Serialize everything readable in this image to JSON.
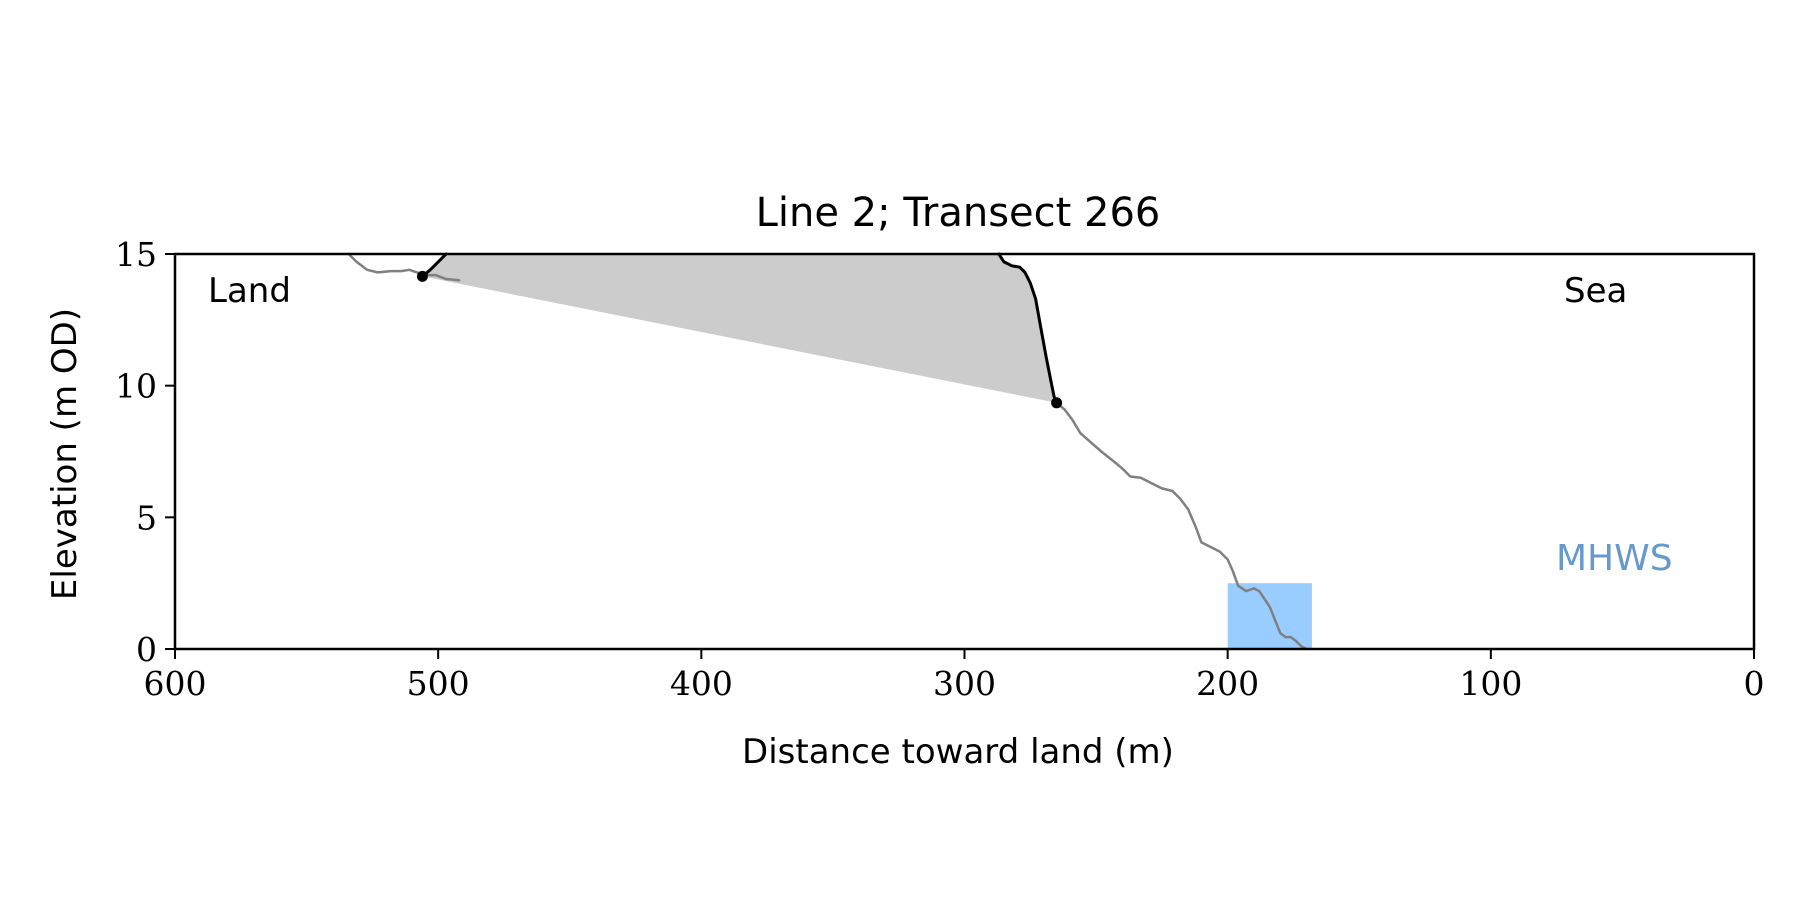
{
  "chart_data": {
    "type": "line",
    "title": "Line 2; Transect 266",
    "xlabel": "Distance toward land (m)",
    "ylabel": "Elevation (m OD)",
    "xlim": [
      600,
      0
    ],
    "ylim": [
      0,
      15
    ],
    "x_ticks": [
      600,
      500,
      400,
      300,
      200,
      100,
      0
    ],
    "y_ticks": [
      0,
      5,
      10,
      15
    ],
    "grid": false,
    "annotations": {
      "land_label": "Land",
      "sea_label": "Sea",
      "mhws_label": "MHWS"
    },
    "mhws_level": 2.5,
    "mhws_x_range": [
      200,
      168
    ],
    "colors": {
      "profile": "#808080",
      "cliff": "#000000",
      "fill": "#cccccc",
      "mhws": "#99ccff",
      "mhws_text": "#6699cc"
    },
    "series": [
      {
        "role": "ground profile",
        "points": [
          [
            534,
            15.0
          ],
          [
            531,
            14.7
          ],
          [
            527,
            14.4
          ],
          [
            523,
            14.3
          ],
          [
            518,
            14.35
          ],
          [
            514,
            14.35
          ],
          [
            511,
            14.4
          ],
          [
            508,
            14.3
          ],
          [
            505,
            14.2
          ],
          [
            501,
            14.2
          ],
          [
            497,
            14.05
          ],
          [
            492,
            14.0
          ]
        ]
      },
      {
        "role": "ground profile",
        "points": [
          [
            265,
            9.35
          ],
          [
            262,
            9.1
          ],
          [
            259,
            8.7
          ],
          [
            256,
            8.2
          ],
          [
            252,
            7.85
          ],
          [
            248,
            7.5
          ],
          [
            243,
            7.1
          ],
          [
            240,
            6.85
          ],
          [
            237,
            6.55
          ],
          [
            233,
            6.5
          ],
          [
            229,
            6.3
          ],
          [
            225,
            6.1
          ],
          [
            221,
            6.0
          ],
          [
            218,
            5.7
          ],
          [
            215,
            5.3
          ],
          [
            212,
            4.6
          ],
          [
            210,
            4.05
          ],
          [
            207,
            3.9
          ],
          [
            203,
            3.7
          ],
          [
            200,
            3.4
          ],
          [
            198,
            2.95
          ],
          [
            196,
            2.4
          ],
          [
            193,
            2.2
          ],
          [
            190,
            2.3
          ],
          [
            188,
            2.2
          ],
          [
            186,
            1.9
          ],
          [
            184,
            1.6
          ],
          [
            182,
            1.1
          ],
          [
            180,
            0.6
          ],
          [
            178,
            0.45
          ],
          [
            176,
            0.45
          ],
          [
            174,
            0.3
          ],
          [
            172,
            0.1
          ],
          [
            170,
            0.0
          ]
        ]
      },
      {
        "role": "cliff top section",
        "points": [
          [
            506,
            14.15
          ],
          [
            503,
            14.4
          ],
          [
            499,
            14.8
          ],
          [
            497,
            15.0
          ]
        ]
      },
      {
        "role": "cliff face section",
        "points": [
          [
            287,
            15.0
          ],
          [
            285,
            14.7
          ],
          [
            282,
            14.55
          ],
          [
            279,
            14.5
          ],
          [
            277,
            14.3
          ],
          [
            275,
            13.9
          ],
          [
            273,
            13.3
          ],
          [
            271,
            12.2
          ],
          [
            269,
            11.1
          ],
          [
            267,
            10.1
          ],
          [
            266,
            9.6
          ],
          [
            265,
            9.35
          ]
        ]
      }
    ],
    "markers": [
      [
        506,
        14.15
      ],
      [
        265,
        9.35
      ]
    ],
    "filled_region": [
      [
        506,
        14.15
      ],
      [
        497,
        15.0
      ],
      [
        287,
        15.0
      ],
      [
        285,
        14.7
      ],
      [
        282,
        14.55
      ],
      [
        279,
        14.5
      ],
      [
        277,
        14.3
      ],
      [
        275,
        13.9
      ],
      [
        273,
        13.3
      ],
      [
        271,
        12.2
      ],
      [
        269,
        11.1
      ],
      [
        267,
        10.1
      ],
      [
        266,
        9.6
      ],
      [
        265,
        9.35
      ]
    ]
  }
}
